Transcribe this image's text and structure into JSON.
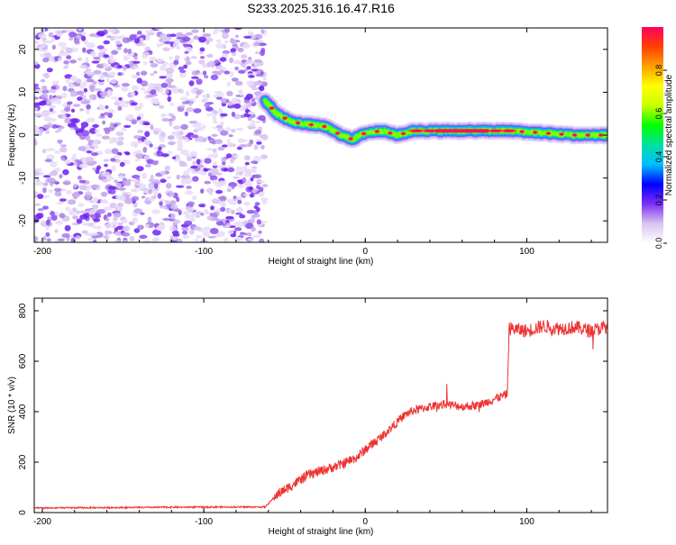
{
  "figure_title": "S233.2025.316.16.47.R16",
  "chart_data": [
    {
      "type": "heatmap",
      "title": "S233.2025.316.16.47.R16",
      "xlabel": "Height of straight line (km)",
      "ylabel": "Frequency (Hz)",
      "xlim": [
        -205,
        150
      ],
      "ylim": [
        -25,
        25
      ],
      "xticks": [
        -200,
        -100,
        0,
        100
      ],
      "yticks": [
        -20,
        -10,
        0,
        10,
        20
      ],
      "noise_region_x": [
        -205,
        -62
      ],
      "ridge": {
        "x": [
          -62,
          -55,
          -45,
          -35,
          -25,
          -15,
          -8,
          0,
          10,
          20,
          30,
          50,
          70,
          90,
          110,
          130,
          150
        ],
        "y": [
          8,
          5,
          3,
          2.5,
          2,
          0,
          -1,
          0.5,
          1,
          0,
          1,
          1,
          1,
          1,
          0.5,
          0,
          0
        ]
      },
      "colorbar": {
        "label": "Normalized spectral amplitude",
        "range": [
          0,
          1
        ],
        "ticks": [
          "0.0",
          "0.2",
          "0.4",
          "0.6",
          "0.8"
        ],
        "colors": [
          "#ffffff",
          "#d8c4f0",
          "#7b2ff7",
          "#0000ff",
          "#00bfff",
          "#00e0a0",
          "#00ff00",
          "#c8ff00",
          "#ffff00",
          "#ffa000",
          "#ff4000",
          "#ff0060"
        ]
      }
    },
    {
      "type": "line",
      "xlabel": "Height of straight line (km)",
      "ylabel": "SNR (10 * v/v)",
      "xlim": [
        -205,
        150
      ],
      "ylim": [
        0,
        850
      ],
      "xticks": [
        -200,
        -100,
        0,
        100
      ],
      "yticks": [
        0,
        200,
        400,
        600,
        800
      ],
      "color": "#ee3333",
      "series": [
        {
          "name": "SNR",
          "x": [
            -205,
            -150,
            -100,
            -62,
            -55,
            -45,
            -35,
            -25,
            -15,
            -5,
            0,
            10,
            20,
            25,
            30,
            40,
            50,
            60,
            70,
            80,
            88,
            89,
            100,
            110,
            120,
            130,
            140,
            150
          ],
          "y": [
            18,
            20,
            22,
            22,
            70,
            110,
            150,
            170,
            190,
            220,
            250,
            300,
            360,
            390,
            405,
            420,
            430,
            420,
            425,
            450,
            470,
            730,
            720,
            740,
            730,
            735,
            720,
            740
          ]
        }
      ]
    }
  ]
}
